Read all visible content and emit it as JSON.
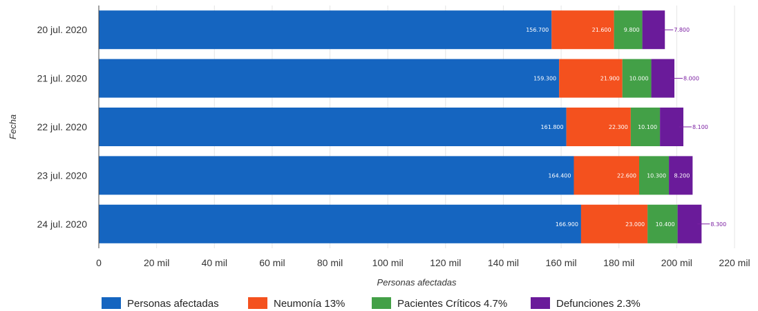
{
  "chart_data": {
    "type": "bar",
    "orientation": "horizontal",
    "stacked": true,
    "categories": [
      "20 jul. 2020",
      "21 jul. 2020",
      "22 jul. 2020",
      "23 jul. 2020",
      "24 jul. 2020"
    ],
    "series": [
      {
        "name": "Personas afectadas",
        "color": "#1565c0",
        "values": [
          156700,
          159300,
          161800,
          164400,
          166900
        ],
        "labels": [
          "156.700",
          "159.300",
          "161.800",
          "164.400",
          "166.900"
        ]
      },
      {
        "name": "Neumonía 13%",
        "color": "#f4511e",
        "values": [
          21600,
          21900,
          22300,
          22600,
          23000
        ],
        "labels": [
          "21.600",
          "21.900",
          "22.300",
          "22.600",
          "23.000"
        ]
      },
      {
        "name": "Pacientes Críticos 4.7%",
        "color": "#43a047",
        "values": [
          9800,
          10000,
          10100,
          10300,
          10400
        ],
        "labels": [
          "9.800",
          "10.000",
          "10.100",
          "10.300",
          "10.400"
        ]
      },
      {
        "name": "Defunciones 2.3%",
        "color": "#6a1b9a",
        "values": [
          7800,
          8000,
          8100,
          8200,
          8300
        ],
        "labels": [
          "7.800",
          "8.000",
          "8.100",
          "8.200",
          "8.300"
        ],
        "label_color": "#7b1fa2"
      }
    ],
    "xlabel": "Personas afectadas",
    "ylabel": "Fecha",
    "xlim": [
      0,
      220000
    ],
    "xticks": [
      0,
      20000,
      40000,
      60000,
      80000,
      100000,
      120000,
      140000,
      160000,
      180000,
      200000,
      220000
    ],
    "xtick_labels": [
      "0",
      "20 mil",
      "40 mil",
      "60 mil",
      "80 mil",
      "100 mil",
      "120 mil",
      "140 mil",
      "160 mil",
      "180 mil",
      "200 mil",
      "220 mil"
    ],
    "grid": "vertical",
    "legend_position": "bottom"
  }
}
